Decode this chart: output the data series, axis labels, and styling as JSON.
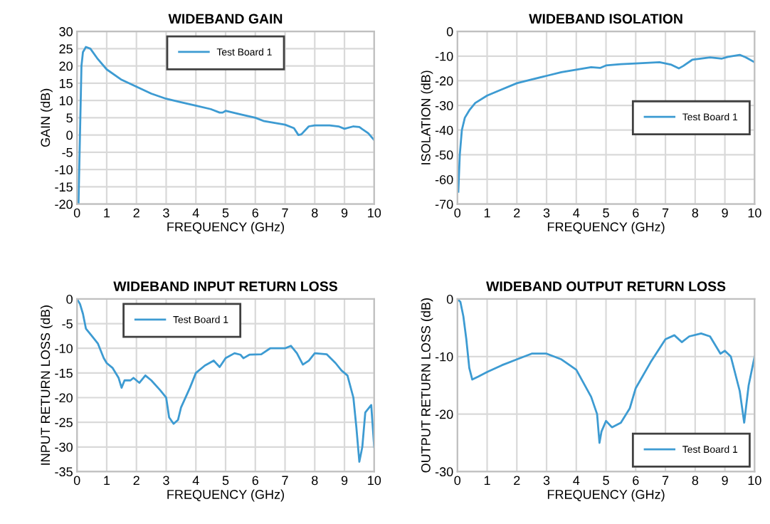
{
  "chart_data": [
    {
      "type": "line",
      "title": "WIDEBAND GAIN",
      "xlabel": "FREQUENCY (GHz)",
      "ylabel": "GAIN (dB)",
      "xlim": [
        0,
        10
      ],
      "ylim": [
        -20,
        30
      ],
      "xticks": [
        0,
        1,
        2,
        3,
        4,
        5,
        6,
        7,
        8,
        9,
        10
      ],
      "yticks": [
        -20,
        -15,
        -10,
        -5,
        0,
        5,
        10,
        15,
        20,
        25,
        30
      ],
      "grid": true,
      "legend": "top center",
      "series": [
        {
          "name": "Test Board 1",
          "color": "#3d9bd2",
          "x": [
            0.05,
            0.1,
            0.15,
            0.2,
            0.3,
            0.45,
            0.7,
            1.0,
            1.5,
            2,
            2.5,
            3,
            3.5,
            4,
            4.5,
            4.8,
            4.9,
            5,
            5.5,
            6,
            6.3,
            7,
            7.3,
            7.45,
            7.55,
            7.8,
            8,
            8.5,
            8.8,
            9,
            9.3,
            9.5,
            9.8,
            10
          ],
          "values": [
            -20,
            0,
            20,
            24,
            25.5,
            25,
            22,
            19,
            16,
            14,
            12,
            10.5,
            9.5,
            8.5,
            7.5,
            6.5,
            6.5,
            7,
            6,
            5,
            4,
            3,
            2,
            0,
            0.2,
            2.5,
            2.8,
            2.8,
            2.5,
            1.8,
            2.5,
            2.3,
            0.5,
            -1.5
          ]
        }
      ]
    },
    {
      "type": "line",
      "title": "WIDEBAND ISOLATION",
      "xlabel": "FREQUENCY (GHz)",
      "ylabel": "ISOLATION (dB)",
      "xlim": [
        0,
        10
      ],
      "ylim": [
        -70,
        0
      ],
      "xticks": [
        0,
        1,
        2,
        3,
        4,
        5,
        6,
        7,
        8,
        9,
        10
      ],
      "yticks": [
        -70,
        -60,
        -50,
        -40,
        -30,
        -20,
        -10,
        0
      ],
      "grid": true,
      "legend": "right",
      "series": [
        {
          "name": "Test Board 1",
          "color": "#3d9bd2",
          "x": [
            0.03,
            0.08,
            0.15,
            0.25,
            0.4,
            0.6,
            1,
            1.5,
            2,
            2.5,
            3,
            3.5,
            4,
            4.5,
            4.8,
            5,
            5.5,
            6,
            6.8,
            7.2,
            7.45,
            7.6,
            7.9,
            8.5,
            8.9,
            9.1,
            9.5,
            9.7,
            10
          ],
          "values": [
            -65,
            -50,
            -40,
            -35,
            -32,
            -29,
            -26,
            -23.5,
            -21,
            -19.5,
            -18,
            -16.5,
            -15.5,
            -14.5,
            -14.8,
            -13.8,
            -13.3,
            -13,
            -12.5,
            -13.5,
            -15,
            -14,
            -11.5,
            -10.5,
            -11,
            -10.3,
            -9.5,
            -10.5,
            -12.5
          ]
        }
      ]
    },
    {
      "type": "line",
      "title": "WIDEBAND INPUT RETURN LOSS",
      "xlabel": "FREQUENCY (GHz)",
      "ylabel": "INPUT RETURN LOSS (dB)",
      "xlim": [
        0,
        10
      ],
      "ylim": [
        -35,
        0
      ],
      "xticks": [
        0,
        1,
        2,
        3,
        4,
        5,
        6,
        7,
        8,
        9,
        10
      ],
      "yticks": [
        -35,
        -30,
        -25,
        -20,
        -15,
        -10,
        -5,
        0
      ],
      "grid": true,
      "legend": "top left",
      "series": [
        {
          "name": "Test Board 1",
          "color": "#3d9bd2",
          "x": [
            0,
            0.1,
            0.2,
            0.3,
            0.5,
            0.7,
            0.9,
            1,
            1.2,
            1.4,
            1.5,
            1.6,
            1.8,
            1.9,
            2.1,
            2.3,
            2.5,
            2.8,
            3,
            3.1,
            3.25,
            3.4,
            3.5,
            3.8,
            4,
            4.3,
            4.6,
            4.8,
            5,
            5.3,
            5.5,
            5.6,
            5.8,
            6.2,
            6.5,
            7,
            7.2,
            7.4,
            7.6,
            7.8,
            8,
            8.4,
            8.7,
            8.9,
            9.1,
            9.3,
            9.4,
            9.5,
            9.6,
            9.7,
            9.9,
            10
          ],
          "values": [
            0,
            -1,
            -3,
            -6,
            -7.5,
            -9,
            -12,
            -13,
            -14,
            -16,
            -18,
            -16.5,
            -16.5,
            -16,
            -17,
            -15.5,
            -16.5,
            -18.5,
            -20,
            -24,
            -25.3,
            -24.5,
            -22,
            -18,
            -15,
            -13.5,
            -12.5,
            -13.8,
            -12,
            -11,
            -11.3,
            -12,
            -11.3,
            -11.2,
            -10,
            -10,
            -9.5,
            -11,
            -13.3,
            -12.5,
            -11,
            -11.2,
            -13,
            -14.5,
            -15.5,
            -20,
            -26,
            -33,
            -30,
            -23,
            -21.5,
            -30
          ]
        }
      ]
    },
    {
      "type": "line",
      "title": "WIDEBAND OUTPUT RETURN LOSS",
      "xlabel": "FREQUENCY (GHz)",
      "ylabel": "OUTPUT RETURN LOSS (dB)",
      "xlim": [
        0,
        10
      ],
      "ylim": [
        -30,
        0
      ],
      "xticks": [
        0,
        1,
        2,
        3,
        4,
        5,
        6,
        7,
        8,
        9,
        10
      ],
      "yticks": [
        -30,
        -20,
        -10,
        0
      ],
      "grid": true,
      "legend": "bottom right",
      "series": [
        {
          "name": "Test Board 1",
          "color": "#3d9bd2",
          "x": [
            0,
            0.1,
            0.2,
            0.3,
            0.4,
            0.5,
            0.7,
            1,
            1.5,
            2,
            2.5,
            3,
            3.5,
            4,
            4.5,
            4.7,
            4.78,
            4.85,
            5,
            5.2,
            5.5,
            5.8,
            6,
            6.5,
            7,
            7.3,
            7.55,
            7.8,
            8.2,
            8.5,
            8.85,
            9,
            9.2,
            9.5,
            9.65,
            9.8,
            10
          ],
          "values": [
            0,
            -0.5,
            -3,
            -7,
            -12,
            -14,
            -13.5,
            -12.7,
            -11.5,
            -10.5,
            -9.5,
            -9.5,
            -10.5,
            -12.3,
            -17,
            -20,
            -25,
            -23,
            -21.2,
            -22.3,
            -21.5,
            -19,
            -15.5,
            -11,
            -7,
            -6.3,
            -7.5,
            -6.5,
            -6,
            -6.5,
            -9.5,
            -9,
            -10,
            -16,
            -21.5,
            -15,
            -10
          ]
        }
      ]
    }
  ]
}
